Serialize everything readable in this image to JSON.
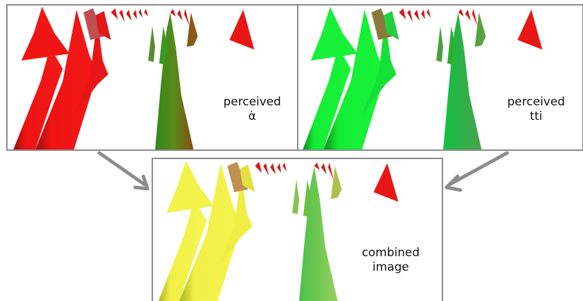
{
  "panels": {
    "left": {
      "label_line1": "perceived",
      "label_line2": "α̇"
    },
    "right": {
      "label_line1": "perceived",
      "label_line2": "tti"
    },
    "bottom": {
      "label_line1": "combined",
      "label_line2": "image"
    }
  },
  "colors": {
    "left_main": "#f01515",
    "right_main": "#15f035",
    "bottom_main": "#f2f24a",
    "panel_border": "#8a8a8a",
    "arrow": "#8c8c8c"
  }
}
